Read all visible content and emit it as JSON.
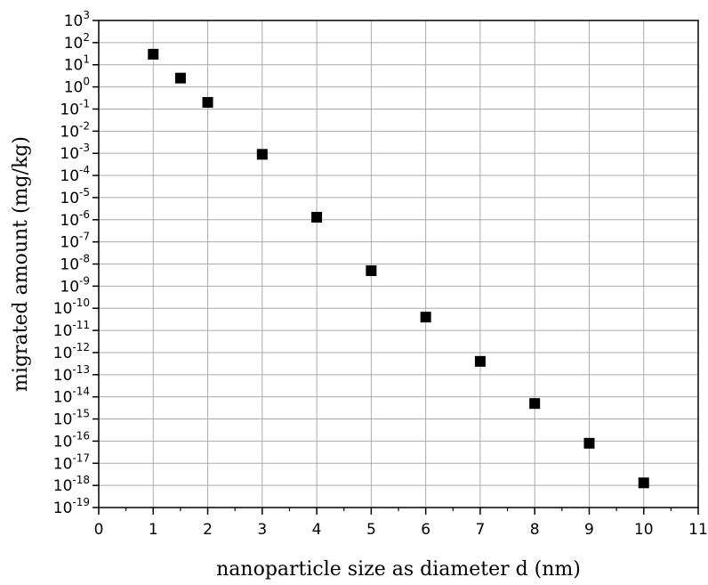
{
  "chart_data": {
    "type": "scatter",
    "xlabel": "nanoparticle size as diameter d (nm)",
    "ylabel": "migrated amount (mg/kg)",
    "xlim": [
      0,
      11
    ],
    "ylim": [
      1e-19,
      1000
    ],
    "y_scale": "log",
    "grid": true,
    "marker": "square",
    "marker_color": "#000000",
    "x_ticks": [
      "0",
      "1",
      "2",
      "3",
      "4",
      "5",
      "6",
      "7",
      "8",
      "9",
      "10",
      "11"
    ],
    "y_tick_base": "10",
    "y_tick_exponents": [
      "-19",
      "-18",
      "-17",
      "-16",
      "-15",
      "-14",
      "-13",
      "-12",
      "-11",
      "-10",
      "-9",
      "-8",
      "-7",
      "-6",
      "-5",
      "-4",
      "-3",
      "-2",
      "-1",
      "0",
      "1",
      "2",
      "3"
    ],
    "points": [
      {
        "x": 1,
        "y": 30
      },
      {
        "x": 1.5,
        "y": 2.5
      },
      {
        "x": 2,
        "y": 0.2
      },
      {
        "x": 3,
        "y": 0.0009
      },
      {
        "x": 4,
        "y": 1.3e-06
      },
      {
        "x": 5,
        "y": 5e-09
      },
      {
        "x": 6,
        "y": 4e-11
      },
      {
        "x": 7,
        "y": 4e-13
      },
      {
        "x": 8,
        "y": 5e-15
      },
      {
        "x": 9,
        "y": 8e-17
      },
      {
        "x": 10,
        "y": 1.3e-18
      }
    ]
  }
}
